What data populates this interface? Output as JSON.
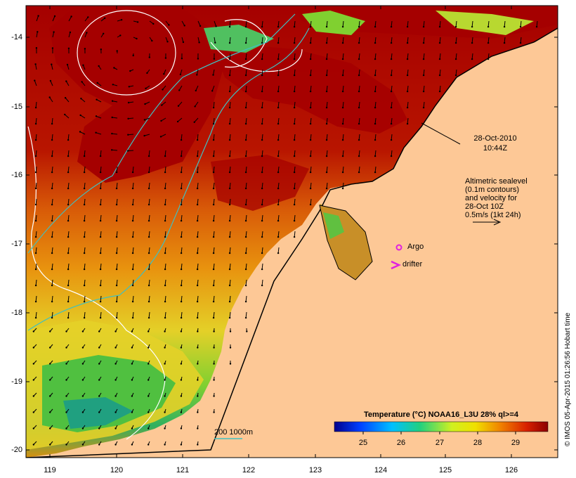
{
  "map": {
    "timestamp_date": "28-Oct-2010",
    "timestamp_time": "10:44Z",
    "altimetry_lines": [
      "Altimetric sealevel",
      "(0.1m contours)",
      "and velocity for",
      "28-Oct 10Z",
      "0.5m/s (1kt 24h)"
    ],
    "argo_label": "Argo",
    "drifter_label": "drifter",
    "isobath_label": "200  1000m",
    "colorbar_title": "Temperature (°C) NOAA16_L3U 28% ql>=4",
    "colorbar_ticks": [
      "25",
      "26",
      "27",
      "28",
      "29"
    ],
    "credit": "© IMOS 05-Apr-2015 01:26:56 Hobart time",
    "x_ticks": [
      "119",
      "120",
      "121",
      "122",
      "123",
      "124",
      "125",
      "126"
    ],
    "y_ticks": [
      "-14",
      "-15",
      "-16",
      "-17",
      "-18",
      "-19",
      "-20"
    ],
    "colors": {
      "land": "#fdc896",
      "warm": "#a50000",
      "orange": "#e88a10",
      "yellow": "#e8e030",
      "green": "#50c030",
      "teal": "#20a080",
      "isobath": "#40c0c0"
    }
  }
}
